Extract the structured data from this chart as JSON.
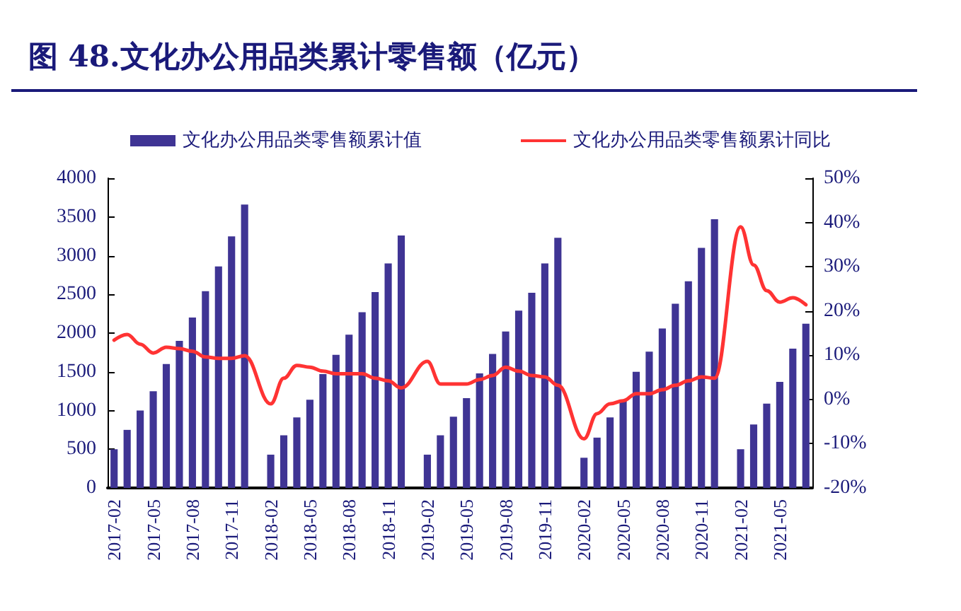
{
  "chart_data": {
    "type": "bar",
    "title": "图 48.文化办公用品类累计零售额（亿元）",
    "categories": [
      "2017-02",
      null,
      null,
      "2017-05",
      null,
      null,
      "2017-08",
      null,
      null,
      "2017-11",
      null,
      null,
      "2018-02",
      null,
      null,
      "2018-05",
      null,
      null,
      "2018-08",
      null,
      null,
      "2018-11",
      null,
      null,
      "2019-02",
      null,
      null,
      "2019-05",
      null,
      null,
      "2019-08",
      null,
      null,
      "2019-11",
      null,
      null,
      "2020-02",
      null,
      null,
      "2020-05",
      null,
      null,
      "2020-08",
      null,
      null,
      "2020-11",
      null,
      null,
      "2021-02",
      null,
      null,
      "2021-05",
      null,
      null
    ],
    "series": [
      {
        "name": "文化办公用品类零售额累计值",
        "color": "#3f3494",
        "values": [
          500,
          750,
          1000,
          1250,
          1600,
          1900,
          2200,
          2540,
          2860,
          3250,
          3660,
          null,
          430,
          680,
          910,
          1140,
          1470,
          1720,
          1980,
          2270,
          2530,
          2900,
          3260,
          null,
          430,
          680,
          920,
          1160,
          1480,
          1730,
          2020,
          2290,
          2520,
          2900,
          3230,
          null,
          390,
          650,
          910,
          1140,
          1500,
          1760,
          2060,
          2380,
          2670,
          3100,
          3470,
          null,
          500,
          820,
          1090,
          1370,
          1800,
          2120
        ]
      },
      {
        "name": "文化办公用品类零售额累计同比",
        "type": "line",
        "axis": "y2",
        "color": "#ff3333",
        "values": [
          13.4,
          14.7,
          12.5,
          10.5,
          11.8,
          11.5,
          10.9,
          9.6,
          9.3,
          9.3,
          9.9,
          null,
          -1,
          4.8,
          7.7,
          7.3,
          6.4,
          5.8,
          5.8,
          5.8,
          4.8,
          4.2,
          2.6,
          null,
          8.6,
          3.5,
          3.5,
          3.5,
          4.5,
          5.4,
          7.3,
          6.4,
          5.4,
          5.1,
          3.2,
          null,
          -8.9,
          -3.2,
          -1,
          -0.3,
          1.3,
          1.3,
          2.2,
          3.2,
          4.2,
          5.1,
          4.8,
          null,
          39,
          30.4,
          24.6,
          22,
          23,
          21.4
        ]
      }
    ],
    "ylim": [
      0,
      4000
    ],
    "yticks": [
      0,
      500,
      1000,
      1500,
      2000,
      2500,
      3000,
      3500,
      4000
    ],
    "y2lim": [
      -20,
      50
    ],
    "y2ticks": [
      {
        "value": -20,
        "label": "-20%"
      },
      {
        "value": -10,
        "label": "-10%"
      },
      {
        "value": 0,
        "label": "0%"
      },
      {
        "value": 10,
        "label": "10%"
      },
      {
        "value": 20,
        "label": "20%"
      },
      {
        "value": 30,
        "label": "30%"
      },
      {
        "value": 40,
        "label": "40%"
      },
      {
        "value": 50,
        "label": "50%"
      }
    ],
    "legend": "top",
    "grid": false,
    "marker": "none",
    "line_style": "solid"
  }
}
